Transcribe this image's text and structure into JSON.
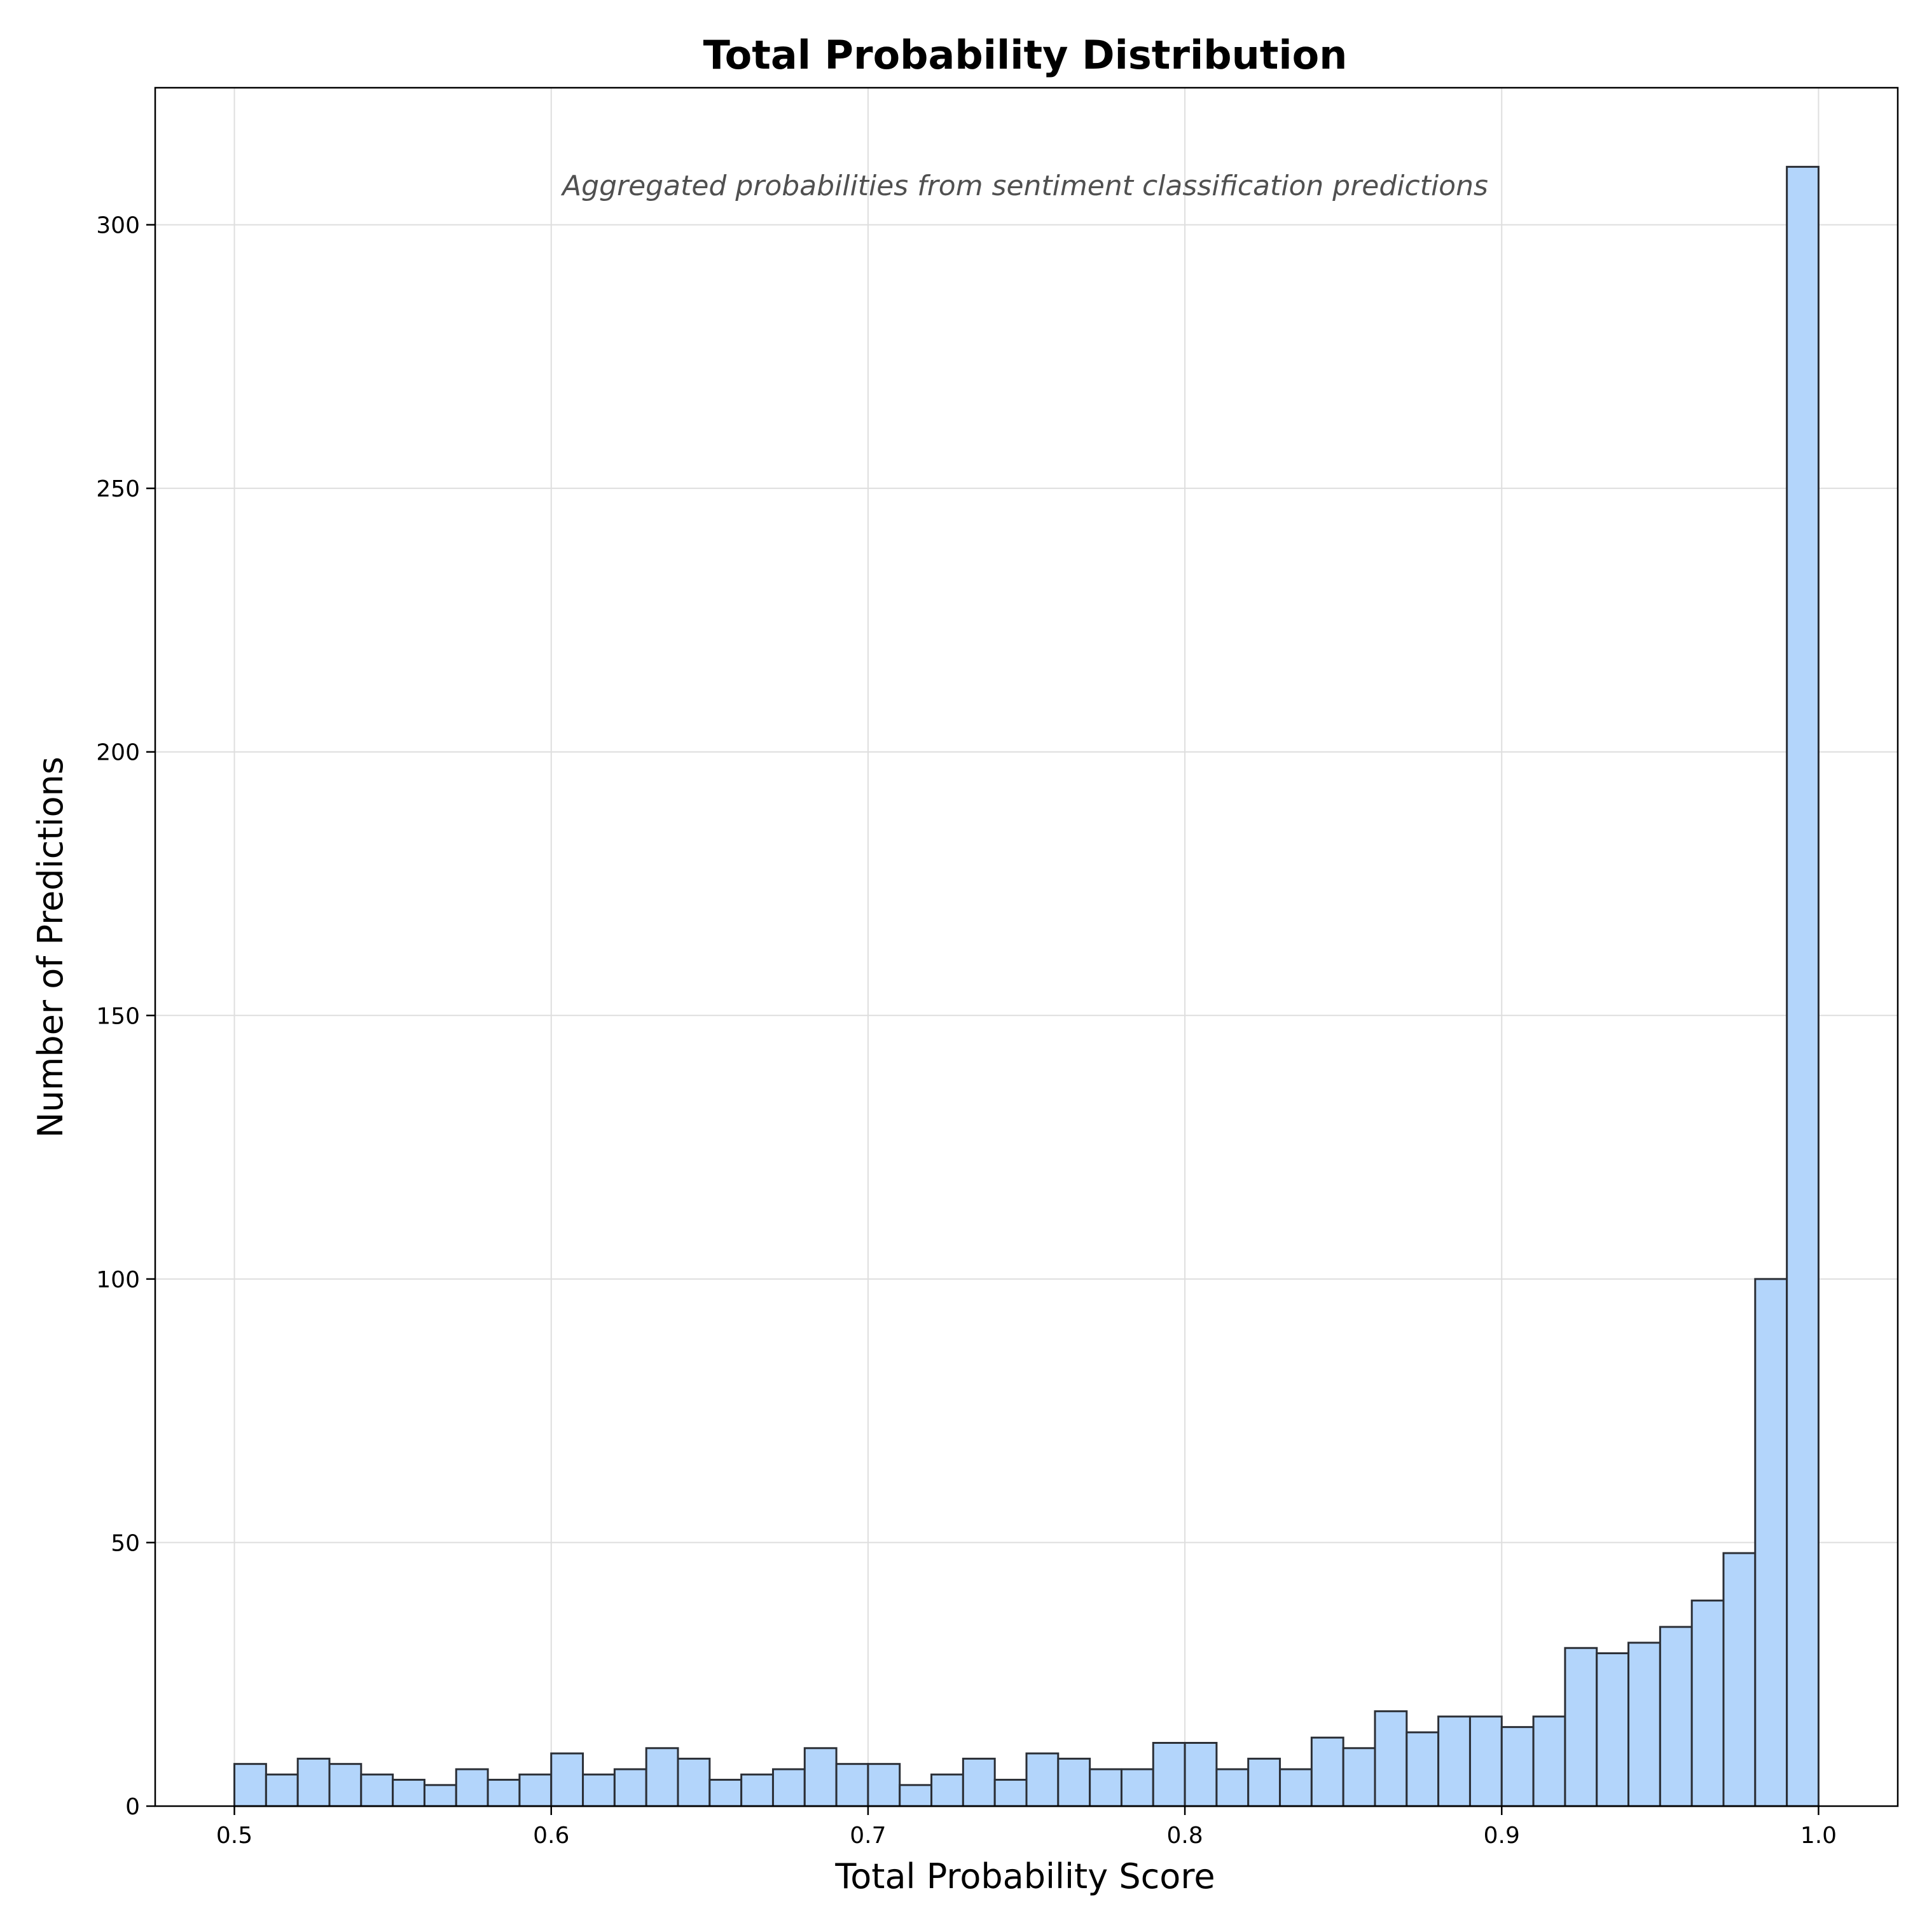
{
  "chart_data": {
    "type": "bar",
    "title": "Total Probability Distribution",
    "annotation": "Aggregated probabilities from sentiment classification predictions",
    "xlabel": "Total Probability Score",
    "ylabel": "Number of Predictions",
    "xlim": [
      0.475,
      1.025
    ],
    "ylim": [
      0,
      326
    ],
    "xticks": [
      0.5,
      0.6,
      0.7,
      0.8,
      0.9,
      1.0
    ],
    "xtick_labels": [
      "0.5",
      "0.6",
      "0.7",
      "0.8",
      "0.9",
      "1.0"
    ],
    "yticks": [
      0,
      50,
      100,
      150,
      200,
      250,
      300
    ],
    "ytick_labels": [
      "0",
      "50",
      "100",
      "150",
      "200",
      "250",
      "300"
    ],
    "grid": true,
    "bar_color": "#b3d5fb",
    "edge_color": "#2b2f36",
    "bin_start": 0.5,
    "bin_width": 0.01,
    "values": [
      8,
      6,
      9,
      8,
      6,
      5,
      4,
      7,
      5,
      6,
      10,
      6,
      7,
      11,
      9,
      5,
      6,
      7,
      11,
      8,
      8,
      4,
      6,
      9,
      5,
      10,
      9,
      7,
      7,
      12,
      12,
      7,
      9,
      7,
      13,
      11,
      18,
      14,
      17,
      17,
      15,
      17,
      30,
      29,
      31,
      34,
      39,
      48,
      100,
      311
    ]
  }
}
